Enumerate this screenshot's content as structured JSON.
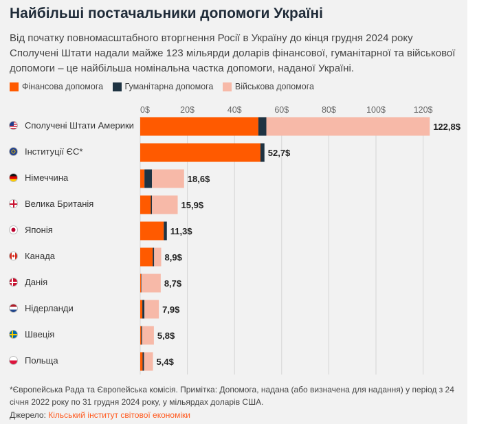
{
  "title": "Найбільші постачальники допомоги Україні",
  "subtitle": "Від початку повномасштабного вторгнення Росії в Україну до кінця грудня 2024 року Сполучені Штати надали майже 123 мільярди доларів фінансової, гуманітарної та військової допомоги – це найбільша номінальна частка допомоги, наданої Україні.",
  "footnote": "*Європейська Рада та Європейська комісія. Примітка: Допомога, надана (або визначена для надання) у період з 24 січня 2022 року по 31 грудня 2024 року, у мільярдах доларів США.",
  "source": {
    "label": "Джерело:",
    "link_text": "Кільський інститут світової економіки"
  },
  "colors": {
    "financial": "#ff5a00",
    "humanitarian": "#1e3342",
    "military": "#f7b9a8"
  },
  "chart_data": {
    "type": "bar",
    "orientation": "horizontal",
    "stacked": true,
    "title": "Найбільші постачальники допомоги Україні",
    "xlabel": "",
    "ylabel": "",
    "xlim": [
      0,
      120
    ],
    "x_ticks": [
      0,
      20,
      40,
      60,
      80,
      100,
      120
    ],
    "x_tick_labels": [
      "0$",
      "20$",
      "40$",
      "60$",
      "80$",
      "100$",
      "120$"
    ],
    "legend_position": "top-left",
    "categories": [
      "Сполучені Штати Америки",
      "Інституції ЄС*",
      "Німеччина",
      "Велика Британія",
      "Японія",
      "Канада",
      "Данія",
      "Нідерланди",
      "Швеція",
      "Польща"
    ],
    "flags": [
      "us-flag-icon",
      "eu-flag-icon",
      "germany-flag-icon",
      "uk-flag-icon",
      "japan-flag-icon",
      "canada-flag-icon",
      "denmark-flag-icon",
      "netherlands-flag-icon",
      "sweden-flag-icon",
      "poland-flag-icon"
    ],
    "series": [
      {
        "name": "Фінансова допомога",
        "key": "financial",
        "values": [
          50.1,
          51.0,
          1.8,
          4.5,
          10.0,
          5.3,
          0.3,
          0.9,
          0.4,
          1.0
        ]
      },
      {
        "name": "Гуманітарна допомога",
        "key": "humanitarian",
        "values": [
          3.4,
          1.7,
          3.2,
          0.5,
          1.3,
          0.6,
          0.2,
          0.9,
          0.4,
          0.6
        ]
      },
      {
        "name": "Військова допомога",
        "key": "military",
        "values": [
          69.3,
          0.0,
          13.6,
          10.9,
          0.0,
          3.0,
          8.2,
          6.1,
          5.0,
          3.8
        ]
      }
    ],
    "totals": [
      122.8,
      52.7,
      18.6,
      15.9,
      11.3,
      8.9,
      8.7,
      7.9,
      5.8,
      5.4
    ],
    "total_labels": [
      "122,8$",
      "52,7$",
      "18,6$",
      "15,9$",
      "11,3$",
      "8,9$",
      "8,7$",
      "7,9$",
      "5,8$",
      "5,4$"
    ]
  }
}
